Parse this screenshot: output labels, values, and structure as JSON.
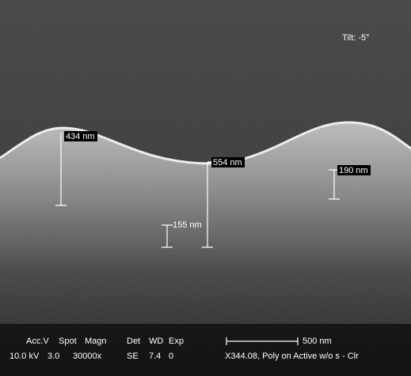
{
  "tilt": "Tilt: -5°",
  "measurements": [
    "434 nm",
    "554 nm",
    "190 nm",
    "155 nm"
  ],
  "info_bar": {
    "headers": [
      "Acc.V",
      "Spot",
      "Magn",
      "Det",
      "WD",
      "Exp"
    ],
    "values": [
      "10.0 kV",
      "3.0",
      "30000x",
      "SE",
      "7.4",
      "0"
    ],
    "scale_label": "500 nm",
    "sample": "X344.08, Poly on Active w/o s - Clr"
  }
}
